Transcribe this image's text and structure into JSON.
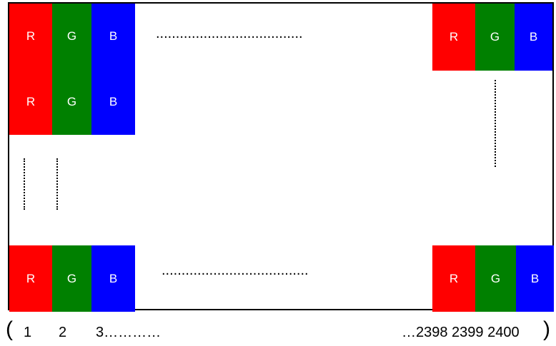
{
  "subpixel_labels": {
    "r": "R",
    "g": "G",
    "b": "B"
  },
  "colors": {
    "red": "#ff0000",
    "green": "#008000",
    "blue": "#0000ff",
    "frame": "#000000"
  },
  "ellipsis_horizontal": ".....................................",
  "axis": {
    "open_paren": "(",
    "close_paren": ")",
    "start_1": "1",
    "start_2": "2",
    "start_3": "3…………",
    "end": "…2398 2399 2400"
  }
}
